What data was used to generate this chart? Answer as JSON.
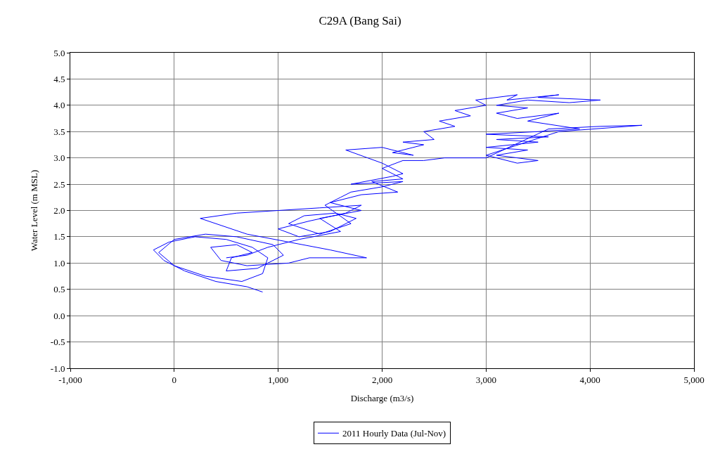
{
  "chart_data": {
    "type": "line",
    "title": "C29A (Bang Sai)",
    "xlabel": "Discharge (m3/s)",
    "ylabel": "Water Level (m MSL)",
    "xlim": [
      -1000,
      5000
    ],
    "ylim": [
      -1.0,
      5.0
    ],
    "xticks": [
      {
        "value": -1000,
        "label": "-1,000"
      },
      0,
      {
        "value": 1000,
        "label": "1,000"
      },
      {
        "value": 2000,
        "label": "2,000"
      },
      {
        "value": 3000,
        "label": "3,000"
      },
      {
        "value": 4000,
        "label": "4,000"
      },
      {
        "value": 5000,
        "label": "5,000"
      }
    ],
    "yticks": [
      {
        "value": -1.0,
        "label": "-1.0"
      },
      {
        "value": -0.5,
        "label": "-0.5"
      },
      {
        "value": 0,
        "label": "0.0"
      },
      {
        "value": 0.5,
        "label": "0.5"
      },
      {
        "value": 1.0,
        "label": "1.0"
      },
      {
        "value": 1.5,
        "label": "1.5"
      },
      {
        "value": 2.0,
        "label": "2.0"
      },
      {
        "value": 2.5,
        "label": "2.5"
      },
      {
        "value": 3.0,
        "label": "3.0"
      },
      {
        "value": 3.5,
        "label": "3.5"
      },
      {
        "value": 4.0,
        "label": "4.0"
      },
      {
        "value": 4.5,
        "label": "4.5"
      },
      {
        "value": 5.0,
        "label": "5.0"
      }
    ],
    "grid": true,
    "legend": "bottom",
    "marker": "none",
    "line_style": "solid",
    "series": [
      {
        "name": "2011 Hourly Data (Jul-Nov)",
        "color": "#0000ff",
        "x": [
          850,
          700,
          400,
          100,
          -100,
          -200,
          -50,
          200,
          500,
          750,
          900,
          850,
          650,
          300,
          0,
          -150,
          0,
          300,
          600,
          950,
          1050,
          800,
          500,
          550,
          750,
          600,
          350,
          450,
          700,
          1100,
          1300,
          1850,
          1500,
          1100,
          700,
          250,
          600,
          1000,
          1400,
          1800,
          1650,
          1300,
          1000,
          1200,
          1500,
          1750,
          1550,
          1250,
          1100,
          1400,
          1700,
          1450,
          1600,
          1700,
          2000,
          2200,
          1700,
          2100,
          2200,
          2000,
          1650,
          2000,
          2300,
          2100,
          2400,
          2200,
          2500,
          2400,
          2700,
          2550,
          2850,
          2700,
          3000,
          2900,
          3300,
          3200,
          3700,
          3500,
          4100,
          3800,
          3400,
          3100,
          3400,
          3100,
          3300,
          3700,
          3400,
          3900,
          3500,
          3000,
          3600,
          3100,
          3500,
          3000,
          3400,
          3100,
          3500,
          3300,
          3000,
          3700,
          4500,
          4100,
          3600,
          3000,
          2600,
          2400,
          2200,
          2000,
          2200,
          1900,
          2150,
          1800,
          1500,
          1800,
          1400,
          1600,
          1200,
          900,
          700,
          500
        ],
        "values": [
          0.45,
          0.55,
          0.65,
          0.85,
          1.05,
          1.25,
          1.4,
          1.5,
          1.45,
          1.3,
          1.1,
          0.8,
          0.65,
          0.75,
          0.95,
          1.2,
          1.45,
          1.55,
          1.5,
          1.35,
          1.15,
          0.9,
          0.85,
          1.1,
          1.2,
          1.35,
          1.3,
          1.05,
          0.95,
          1.0,
          1.1,
          1.1,
          1.25,
          1.4,
          1.55,
          1.85,
          1.95,
          2.0,
          2.05,
          2.1,
          1.95,
          1.8,
          1.65,
          1.5,
          1.6,
          1.85,
          1.95,
          1.9,
          1.75,
          1.55,
          1.75,
          2.1,
          2.25,
          2.35,
          2.45,
          2.55,
          2.5,
          2.65,
          2.7,
          2.9,
          3.15,
          3.2,
          3.05,
          3.1,
          3.25,
          3.3,
          3.35,
          3.5,
          3.6,
          3.7,
          3.8,
          3.9,
          4.0,
          4.1,
          4.2,
          4.1,
          4.2,
          4.15,
          4.1,
          4.05,
          4.1,
          4.0,
          3.95,
          3.85,
          3.75,
          3.85,
          3.7,
          3.55,
          3.5,
          3.45,
          3.4,
          3.35,
          3.3,
          3.2,
          3.15,
          3.05,
          2.95,
          2.9,
          3.05,
          3.5,
          3.62,
          3.6,
          3.55,
          3.0,
          3.0,
          2.95,
          2.95,
          2.8,
          2.6,
          2.55,
          2.35,
          2.3,
          2.15,
          2.0,
          1.85,
          1.6,
          1.45,
          1.3,
          1.15,
          1.1
        ]
      }
    ]
  }
}
